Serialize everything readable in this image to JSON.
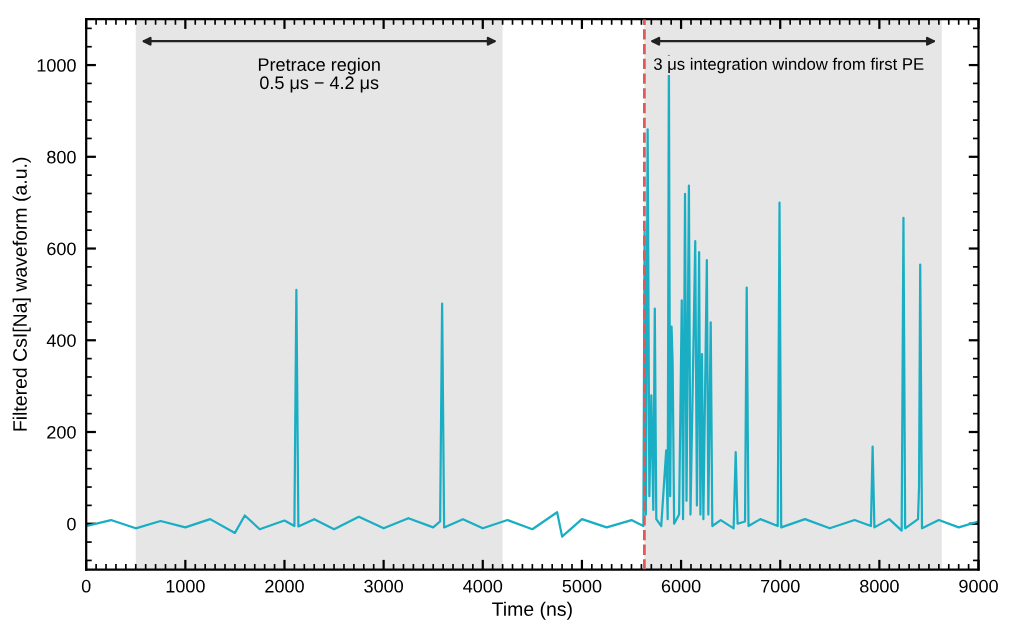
{
  "chart_data": {
    "type": "line",
    "xlabel": "Time (ns)",
    "ylabel": "Filtered CsI[Na] waveform (a.u.)",
    "xlim": [
      0,
      9000
    ],
    "ylim": [
      -100,
      1100
    ],
    "xticks": [
      0,
      1000,
      2000,
      3000,
      4000,
      5000,
      6000,
      7000,
      8000,
      9000
    ],
    "yticks": [
      0,
      200,
      400,
      600,
      800,
      1000
    ],
    "grid": false,
    "bands": [
      {
        "axis": "x",
        "from": 500,
        "to": 4200,
        "label": "Pretrace region\n0.5 μs − 4.2 μs",
        "color": "#e6e6e6"
      },
      {
        "axis": "x",
        "from": 5630,
        "to": 8630,
        "label": "3 μs integration window from first PE",
        "color": "#e6e6e6"
      }
    ],
    "ref_lines": [
      {
        "axis": "x",
        "value": 5630,
        "color": "#e05a5a",
        "line_style": "dashed"
      }
    ],
    "series": [
      {
        "color": "#1aaec4",
        "x": [
          0,
          250,
          500,
          750,
          1000,
          1250,
          1500,
          1600,
          1750,
          2000,
          2100,
          2120,
          2140,
          2300,
          2500,
          2750,
          3000,
          3250,
          3500,
          3570,
          3590,
          3610,
          3800,
          4000,
          4250,
          4500,
          4750,
          4800,
          5000,
          5250,
          5500,
          5620,
          5632,
          5645,
          5663,
          5680,
          5700,
          5720,
          5735,
          5750,
          5800,
          5850,
          5865,
          5877,
          5890,
          5904,
          5915,
          5930,
          5980,
          6007,
          6020,
          6040,
          6055,
          6079,
          6095,
          6143,
          6160,
          6182,
          6195,
          6211,
          6225,
          6260,
          6275,
          6299,
          6315,
          6400,
          6530,
          6551,
          6570,
          6645,
          6662,
          6680,
          6800,
          6975,
          6993,
          7010,
          7250,
          7500,
          7750,
          7915,
          7932,
          7950,
          8100,
          8225,
          8243,
          8260,
          8390,
          8400,
          8412,
          8430,
          8600,
          8800,
          9000
        ],
        "values": [
          -5,
          8,
          -10,
          6,
          -8,
          10,
          -20,
          18,
          -12,
          7,
          -5,
          510,
          -6,
          10,
          -12,
          15,
          -10,
          12,
          -8,
          5,
          480,
          -8,
          10,
          -10,
          8,
          -12,
          25,
          -28,
          10,
          -8,
          8,
          -5,
          640,
          20,
          860,
          60,
          280,
          30,
          469,
          10,
          -5,
          160,
          10,
          1020,
          60,
          430,
          350,
          0,
          20,
          487,
          10,
          719,
          50,
          737,
          20,
          616,
          40,
          592,
          20,
          370,
          10,
          575,
          20,
          439,
          -5,
          8,
          -10,
          156,
          0,
          5,
          515,
          -5,
          10,
          -5,
          700,
          -8,
          10,
          -10,
          8,
          -5,
          168,
          -8,
          10,
          -15,
          667,
          -10,
          10,
          80,
          565,
          -10,
          8,
          -8,
          5
        ]
      }
    ]
  }
}
